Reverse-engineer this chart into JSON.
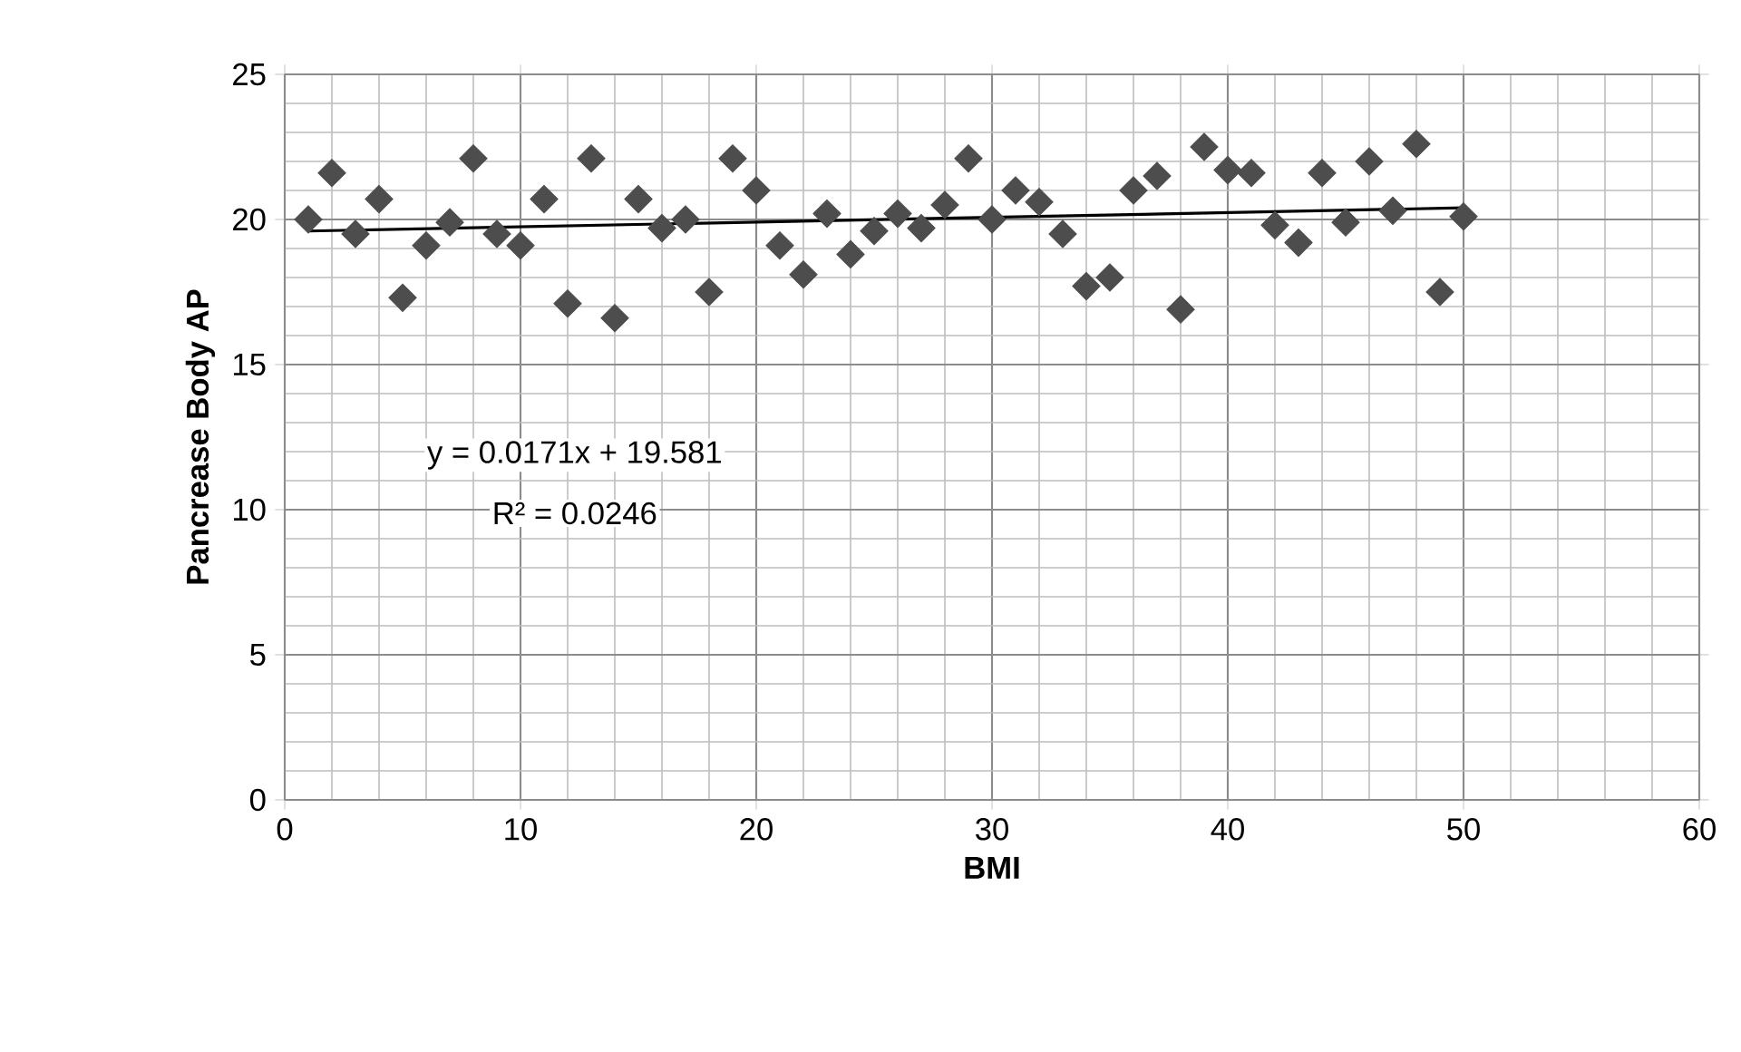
{
  "chart_data": {
    "type": "scatter",
    "xlabel": "BMI",
    "ylabel": "Pancrease Body AP",
    "xlim": [
      0,
      60
    ],
    "xticks": [
      0,
      10,
      20,
      30,
      40,
      50,
      60
    ],
    "ylim": [
      0,
      25
    ],
    "yticks": [
      0,
      5,
      10,
      15,
      20,
      25
    ],
    "grid": true,
    "marker": "diamond",
    "series": [
      {
        "color": "#4d4d4d",
        "x": [
          1,
          2,
          3,
          4,
          5,
          6,
          7,
          8,
          9,
          10,
          11,
          12,
          13,
          14,
          15,
          16,
          17,
          18,
          19,
          20,
          21,
          22,
          23,
          24,
          25,
          26,
          27,
          28,
          29,
          30,
          31,
          32,
          33,
          34,
          35,
          36,
          37,
          38,
          39,
          40,
          41,
          42,
          43,
          44,
          45,
          46,
          47,
          48,
          49,
          50
        ],
        "values": [
          20.0,
          21.6,
          19.5,
          20.7,
          17.3,
          19.1,
          19.9,
          22.1,
          19.5,
          19.1,
          20.7,
          17.1,
          22.1,
          16.6,
          20.7,
          19.7,
          20.0,
          17.5,
          22.1,
          21.0,
          19.1,
          18.1,
          20.2,
          18.8,
          19.6,
          20.2,
          19.7,
          20.5,
          22.1,
          20.0,
          21.0,
          20.6,
          19.5,
          17.7,
          18.0,
          21.0,
          21.5,
          16.9,
          22.5,
          21.7,
          21.6,
          19.8,
          19.2,
          21.6,
          19.9,
          22.0,
          20.3,
          22.6,
          17.5,
          20.1
        ]
      },
      {
        "type": "line",
        "color": "#000000",
        "marker": "none",
        "x": [
          1,
          50
        ],
        "values": [
          19.6,
          20.4
        ]
      }
    ],
    "annotations": [
      "y = 0.0171x + 19.581",
      "R² = 0.0246"
    ]
  }
}
